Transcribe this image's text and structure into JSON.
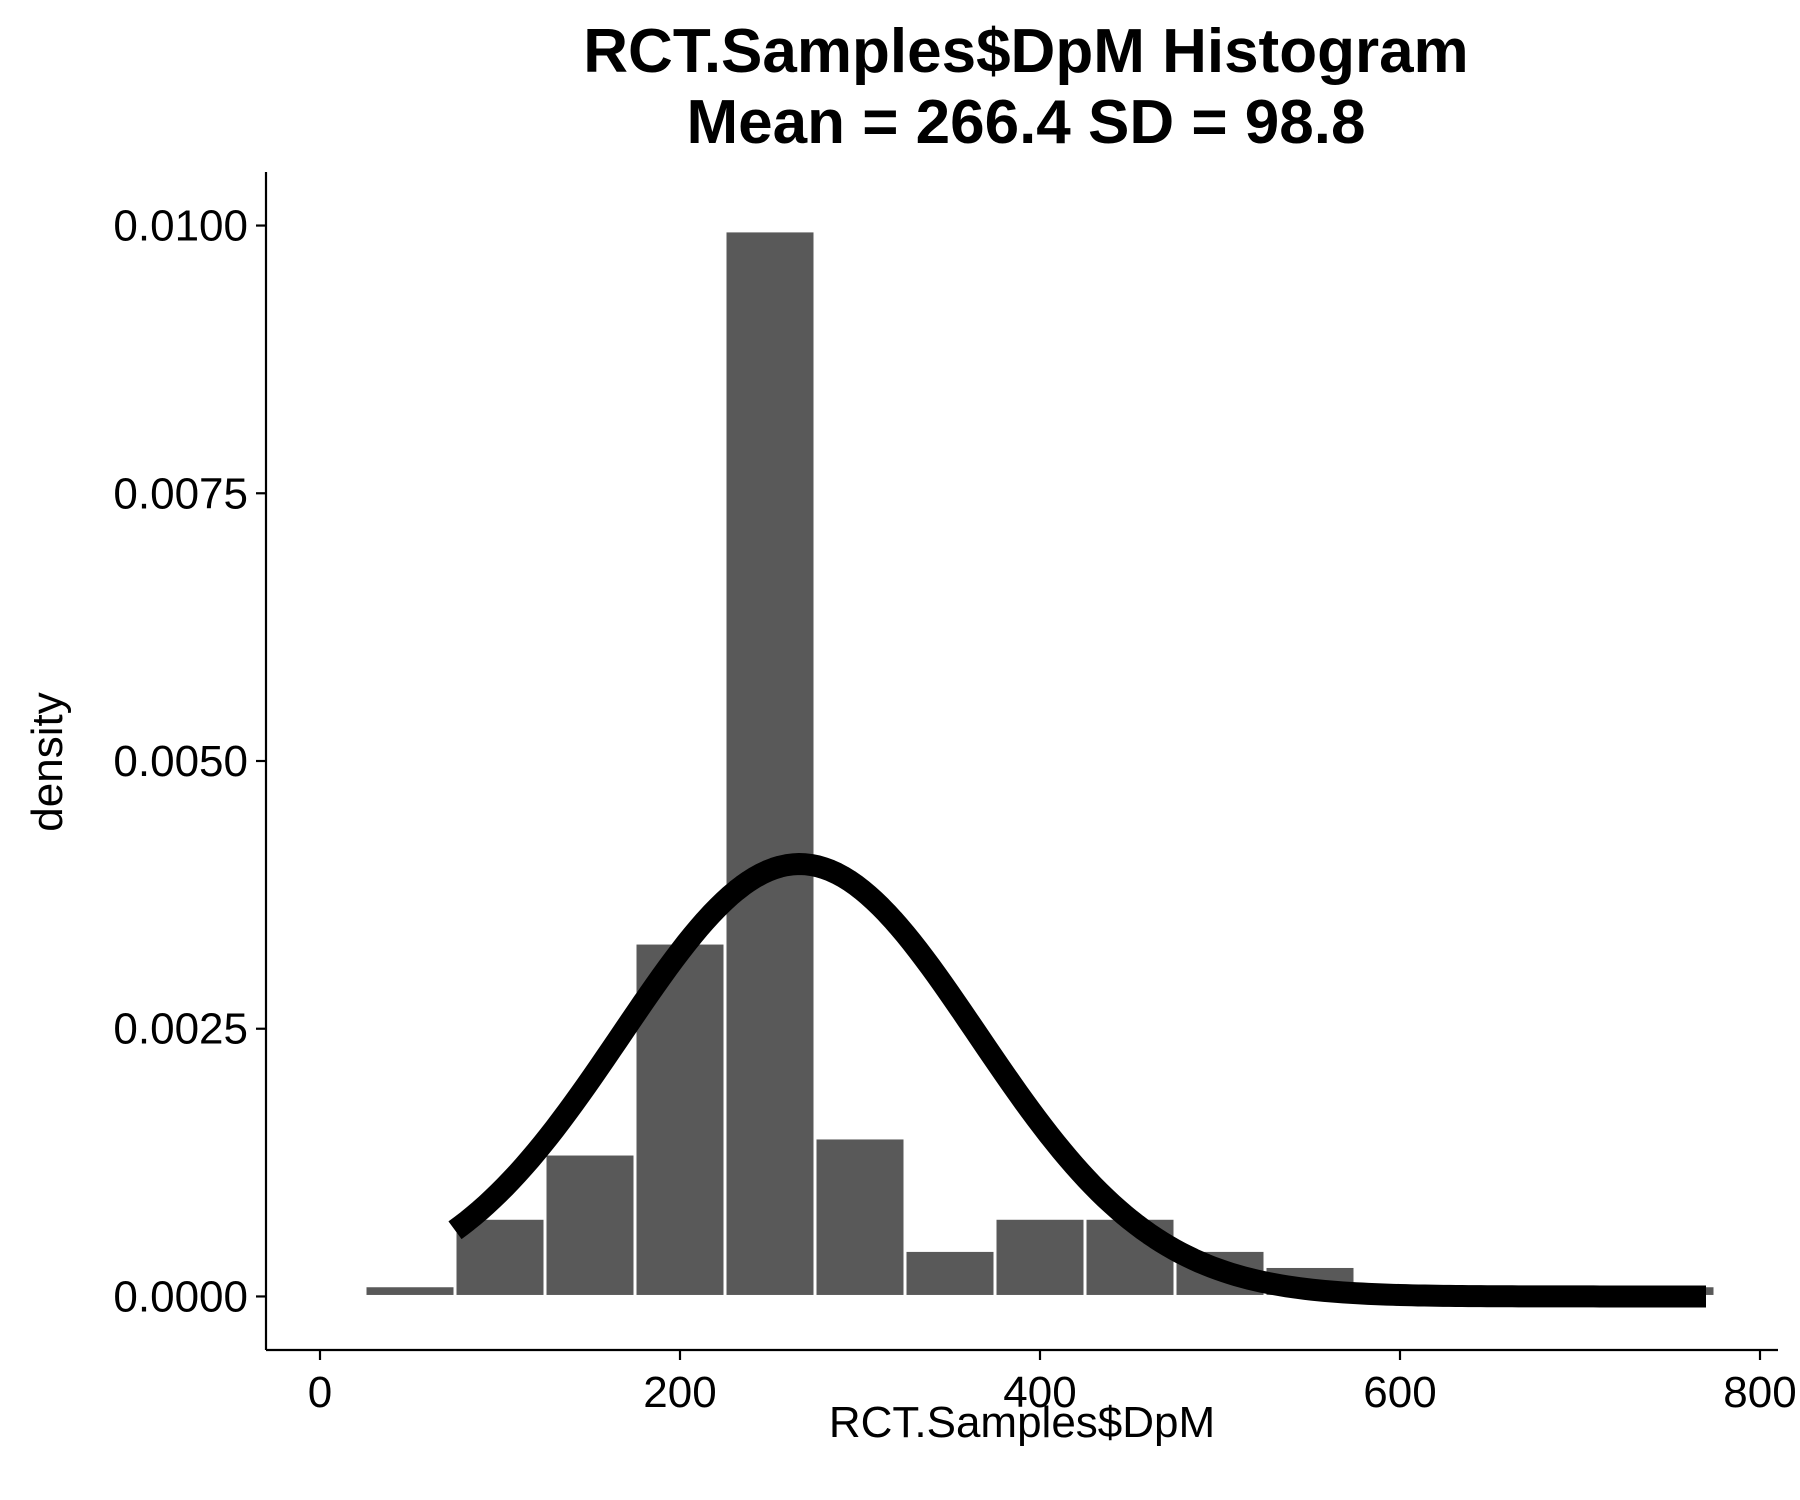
{
  "chart_data": {
    "type": "bar",
    "subtype": "histogram with fitted normal density curve",
    "title": "RCT.Samples$DpM Histogram",
    "subtitle": "Mean = 266.4 SD = 98.8",
    "xlabel": "RCT.Samples$DpM",
    "ylabel": "density",
    "xlim": [
      -30,
      810
    ],
    "ylim": [
      -0.0005,
      0.0105
    ],
    "x_ticks": [
      0,
      200,
      400,
      600,
      800
    ],
    "x_tick_labels": [
      "0",
      "200",
      "400",
      "600",
      "800"
    ],
    "y_ticks": [
      0,
      0.0025,
      0.005,
      0.0075,
      0.01
    ],
    "y_tick_labels": [
      "0.0000",
      "0.0025",
      "0.0050",
      "0.0075",
      "0.0100"
    ],
    "grid": false,
    "legend": "none",
    "bar_color": "#595959",
    "bar_edge_color": "#ffffff",
    "curve_color": "#000000",
    "bins": [
      {
        "x0": 25,
        "x1": 75,
        "density": 0.0001
      },
      {
        "x0": 75,
        "x1": 125,
        "density": 0.00073
      },
      {
        "x0": 125,
        "x1": 175,
        "density": 0.00133
      },
      {
        "x0": 175,
        "x1": 225,
        "density": 0.0033
      },
      {
        "x0": 225,
        "x1": 275,
        "density": 0.00995
      },
      {
        "x0": 275,
        "x1": 325,
        "density": 0.00148
      },
      {
        "x0": 325,
        "x1": 375,
        "density": 0.00043
      },
      {
        "x0": 375,
        "x1": 425,
        "density": 0.00073
      },
      {
        "x0": 425,
        "x1": 475,
        "density": 0.00073
      },
      {
        "x0": 475,
        "x1": 525,
        "density": 0.00043
      },
      {
        "x0": 525,
        "x1": 575,
        "density": 0.00028
      },
      {
        "x0": 575,
        "x1": 625,
        "density": 0.0
      },
      {
        "x0": 625,
        "x1": 675,
        "density": 0.0
      },
      {
        "x0": 675,
        "x1": 725,
        "density": 0.0
      },
      {
        "x0": 725,
        "x1": 775,
        "density": 0.0001
      }
    ],
    "normal_curve": {
      "mean": 266.4,
      "sd": 98.8,
      "x_range": [
        75,
        770
      ]
    }
  }
}
